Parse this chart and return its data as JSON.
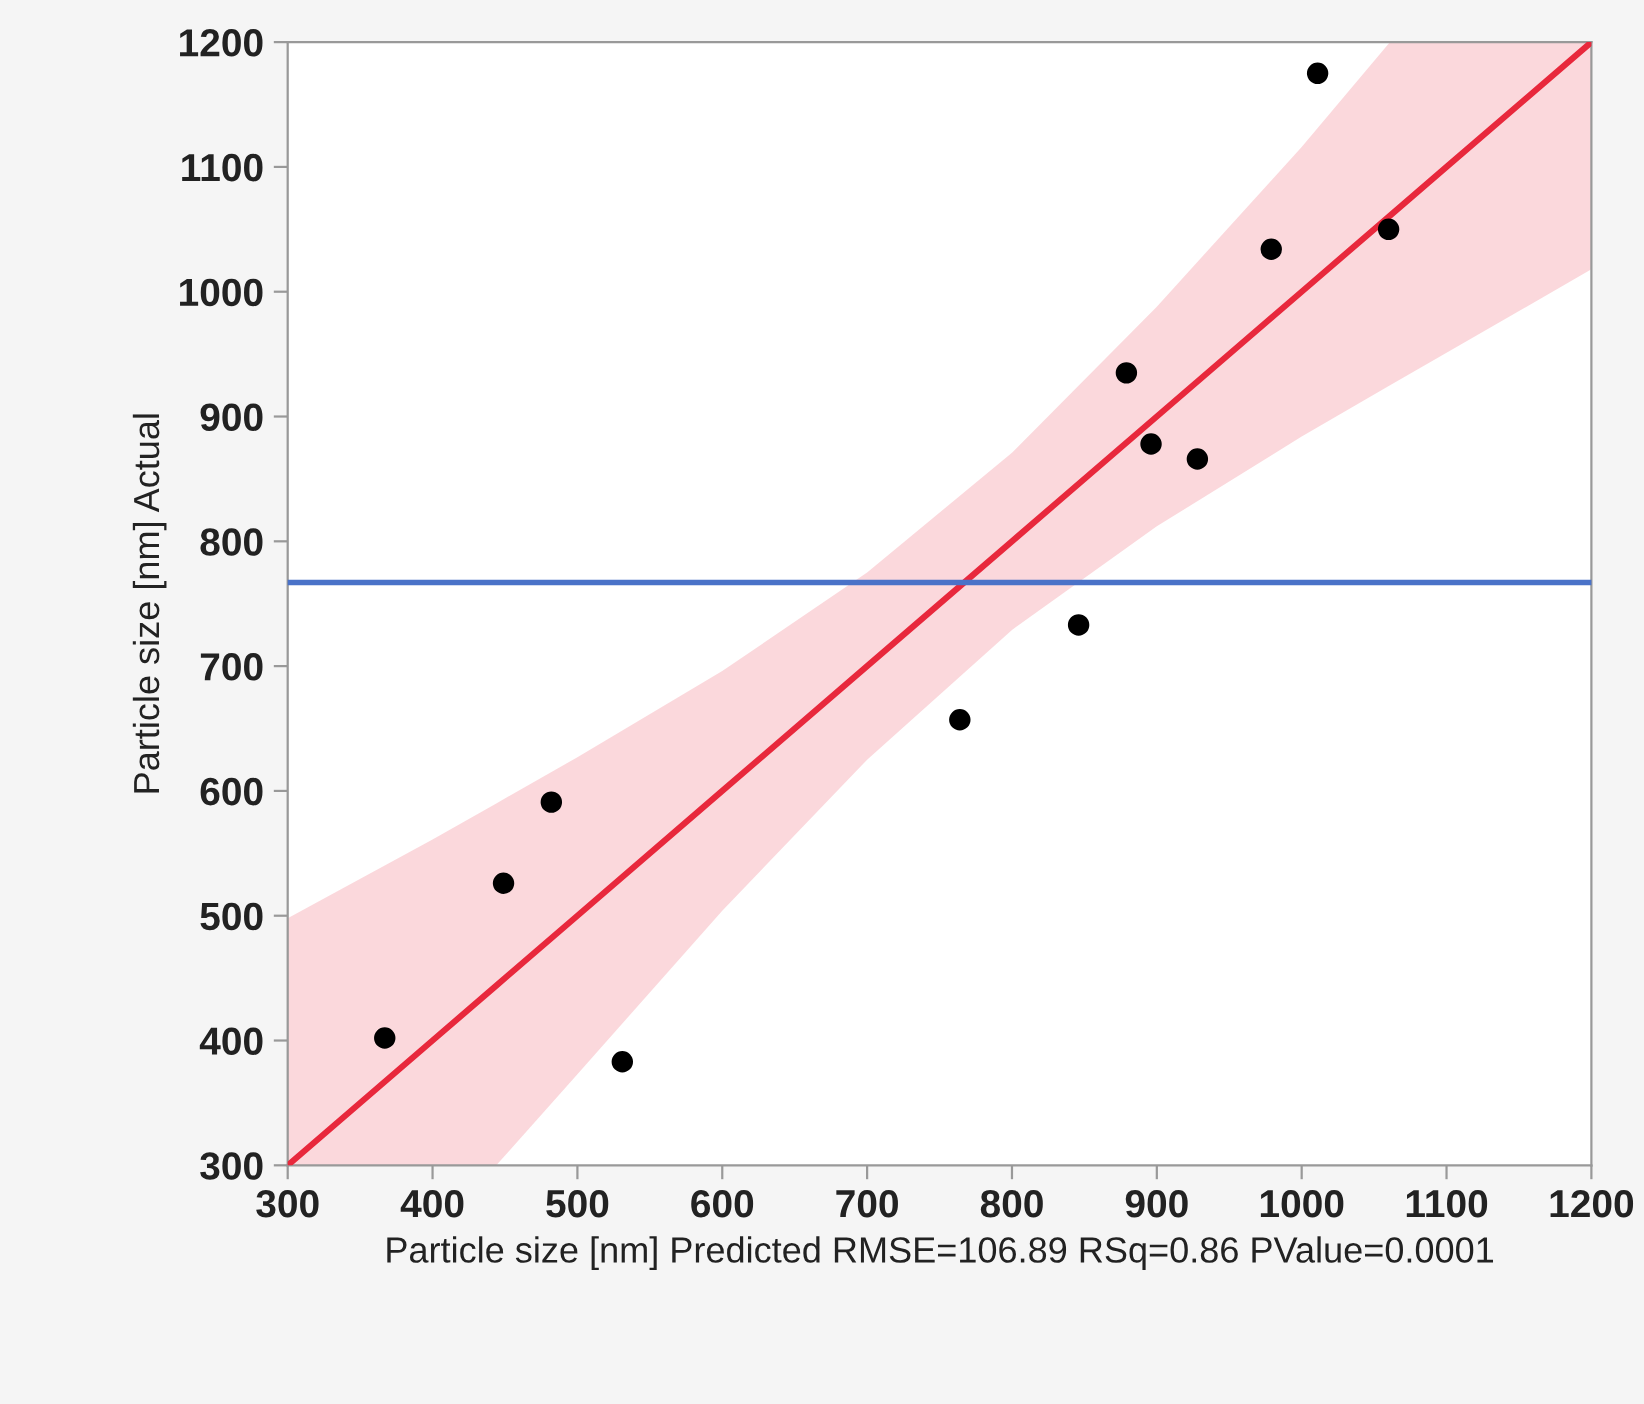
{
  "chart_data": {
    "type": "scatter",
    "xlabel": "Particle size [nm] Predicted RMSE=106.89 RSq=0.86 PValue=0.0001",
    "ylabel": "Particle size [nm] Actual",
    "xlim": [
      300,
      1200
    ],
    "ylim": [
      300,
      1200
    ],
    "xticks": [
      300,
      400,
      500,
      600,
      700,
      800,
      900,
      1000,
      1100,
      1200
    ],
    "yticks": [
      300,
      400,
      500,
      600,
      700,
      800,
      900,
      1000,
      1100,
      1200
    ],
    "grid": false,
    "legend": false,
    "marker": "circle",
    "series": [
      {
        "color": "#000000",
        "x": [
          367,
          449,
          482,
          531,
          764,
          846,
          879,
          896,
          928,
          979,
          1011,
          1060
        ],
        "values": [
          402,
          526,
          591,
          383,
          657,
          733,
          935,
          878,
          866,
          1034,
          1175,
          1050
        ]
      },
      {
        "type": "line",
        "color": "#e8283c",
        "marker": "none",
        "x": [
          300,
          400,
          444,
          500,
          600,
          700,
          800,
          900,
          1000,
          1061,
          1100,
          1200
        ],
        "values": [
          300,
          400,
          444,
          500,
          600,
          700,
          800,
          900,
          1000,
          1061,
          1100,
          1200
        ],
        "upper": [
          498,
          561,
          590,
          627,
          696,
          775,
          871,
          988,
          1116,
          1200,
          1200,
          1200
        ],
        "lower": [
          300,
          300,
          300,
          373,
          504,
          625,
          729,
          812,
          884,
          925,
          951,
          1018
        ]
      }
    ],
    "ref_lines": [
      {
        "axis": "y",
        "value": 767,
        "color": "#4a72c8"
      }
    ]
  }
}
